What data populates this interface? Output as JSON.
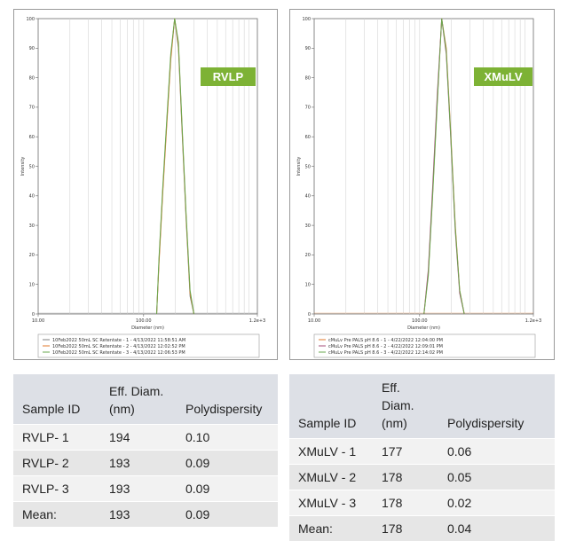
{
  "charts": [
    {
      "id": "left",
      "badge": "RVLP",
      "badge_color": "#7db235",
      "line_colors": [
        "#7f7f7f",
        "#e07a2e",
        "#6aa84f"
      ],
      "legend": [
        "10Feb2022 50mL SC Retentate - 1 - 4/13/2022 11:58:51 AM",
        "10Feb2022 50mL SC Retentate - 2 - 4/13/2022 12:02:52 PM",
        "10Feb2022 50mL SC Retentate - 3 - 4/13/2022 12:06:53 PM"
      ]
    },
    {
      "id": "right",
      "badge": "XMuLV",
      "badge_color": "#7db235",
      "line_colors": [
        "#e07a2e",
        "#a64d79",
        "#6aa84f"
      ],
      "legend": [
        "cMuLv Pre PALS pH 8.6 - 1 - 4/22/2022 12:04:00 PM",
        "cMuLv Pre PALS pH 8.6 - 2 - 4/22/2022 12:09:01 PM",
        "cMuLv Pre PALS pH 8.6 - 3 - 4/22/2022 12:14:02 PM"
      ]
    }
  ],
  "chart_data": [
    {
      "type": "line",
      "xlabel": "Diameter (nm)",
      "ylabel": "Intensity",
      "x_scale": "log",
      "xlim": [
        10,
        1200
      ],
      "ylim": [
        0,
        100
      ],
      "x_ticks": [
        "10.00",
        "100.00",
        "1.2e+3"
      ],
      "y_ticks": [
        "0",
        "10",
        "20",
        "30",
        "40",
        "50",
        "60",
        "70",
        "80",
        "90",
        "100"
      ],
      "grid": true,
      "legend_position": "bottom",
      "series": [
        {
          "name": "10Feb2022 50mL SC Retentate - 1 - 4/13/2022 11:58:51 AM",
          "x": [
            133,
            140,
            152,
            166,
            181,
            197,
            214,
            233,
            253,
            276,
            300
          ],
          "y": [
            0,
            18,
            42,
            65,
            87,
            100,
            90,
            60,
            32,
            6,
            0
          ]
        },
        {
          "name": "10Feb2022 50mL SC Retentate - 2 - 4/13/2022 12:02:52 PM",
          "x": [
            133,
            140,
            152,
            166,
            181,
            197,
            214,
            233,
            253,
            276,
            300
          ],
          "y": [
            0,
            17,
            41,
            64,
            86,
            100,
            91,
            61,
            33,
            7,
            0
          ]
        },
        {
          "name": "10Feb2022 50mL SC Retentate - 3 - 4/13/2022 12:06:53 PM",
          "x": [
            133,
            140,
            152,
            166,
            181,
            197,
            214,
            233,
            253,
            276,
            300
          ],
          "y": [
            0,
            19,
            43,
            66,
            88,
            100,
            92,
            62,
            34,
            8,
            0
          ]
        }
      ]
    },
    {
      "type": "line",
      "xlabel": "Diameter (nm)",
      "ylabel": "Intensity",
      "x_scale": "log",
      "xlim": [
        10,
        1200
      ],
      "ylim": [
        0,
        100
      ],
      "x_ticks": [
        "10.00",
        "100.00",
        "1.2e+3"
      ],
      "y_ticks": [
        "0",
        "10",
        "20",
        "30",
        "40",
        "50",
        "60",
        "70",
        "80",
        "90",
        "100"
      ],
      "grid": true,
      "legend_position": "bottom",
      "series": [
        {
          "name": "cMuLv Pre PALS pH 8.6 - 1 - 4/22/2022 12:04:00 PM",
          "x": [
            110,
            121,
            133,
            147,
            162,
            179,
            197,
            218,
            240,
            265
          ],
          "y": [
            0,
            14,
            41,
            72,
            100,
            90,
            62,
            30,
            8,
            0
          ]
        },
        {
          "name": "cMuLv Pre PALS pH 8.6 - 2 - 4/22/2022 12:09:01 PM",
          "x": [
            110,
            121,
            133,
            147,
            162,
            179,
            197,
            218,
            240,
            265
          ],
          "y": [
            0,
            15,
            43,
            74,
            100,
            88,
            60,
            28,
            7,
            0
          ]
        },
        {
          "name": "cMuLv Pre PALS pH 8.6 - 3 - 4/22/2022 12:14:02 PM",
          "x": [
            110,
            121,
            133,
            147,
            162,
            179,
            197,
            218,
            240,
            265
          ],
          "y": [
            0,
            13,
            40,
            71,
            100,
            89,
            61,
            29,
            8,
            0
          ]
        }
      ]
    }
  ],
  "tables": [
    {
      "headers": [
        "Sample ID",
        "Eff. Diam. (nm)",
        "Polydispersity"
      ],
      "rows": [
        [
          "RVLP- 1",
          "194",
          "0.10"
        ],
        [
          "RVLP- 2",
          "193",
          "0.09"
        ],
        [
          "RVLP- 3",
          "193",
          "0.09"
        ],
        [
          "Mean:",
          "193",
          "0.09"
        ]
      ]
    },
    {
      "headers": [
        "Sample ID",
        "Eff. Diam. (nm)",
        "Polydispersity"
      ],
      "rows": [
        [
          "XMuLV - 1",
          "177",
          "0.06"
        ],
        [
          "XMuLV - 2",
          "178",
          "0.05"
        ],
        [
          "XMuLV - 3",
          "178",
          "0.02"
        ],
        [
          "Mean:",
          "178",
          "0.04"
        ]
      ]
    }
  ]
}
